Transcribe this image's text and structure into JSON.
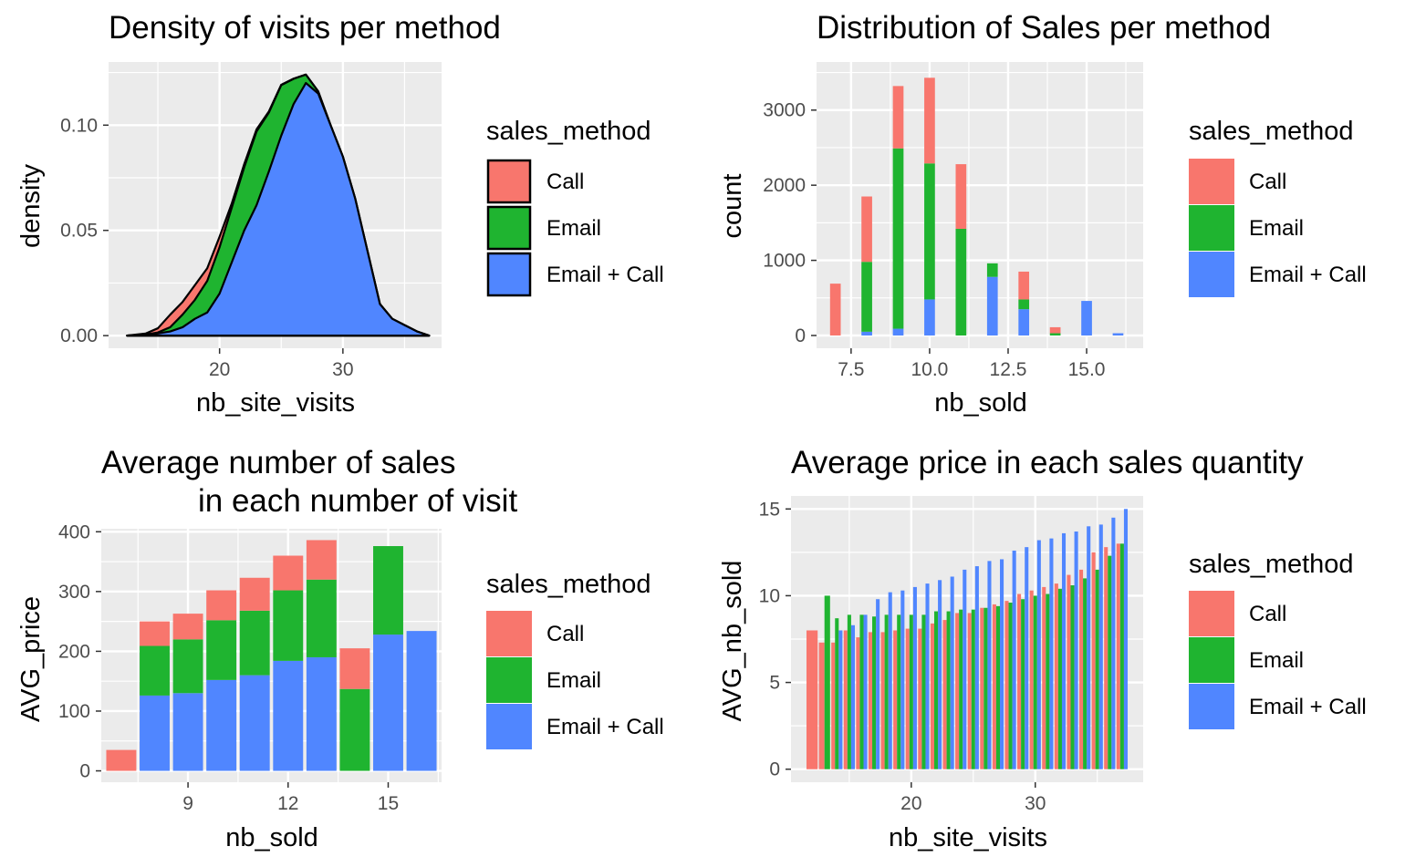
{
  "legend": {
    "title": "sales_method",
    "entries": [
      "Call",
      "Email",
      "Email + Call"
    ]
  },
  "colors": {
    "Call": "#F8766D",
    "Email": "#1FB430",
    "Email + Call": "#5086FF",
    "panel": "#EBEBEB"
  },
  "chart_data": [
    {
      "type": "area",
      "title": "Density of visits per method",
      "xlabel": "nb_site_visits",
      "ylabel": "density",
      "xlim": [
        11,
        38
      ],
      "ylim": [
        -0.006,
        0.13
      ],
      "xticks": [
        20,
        30
      ],
      "yticks": [
        0.0,
        0.05,
        0.1
      ],
      "ytick_labels": [
        "0.00",
        "0.05",
        "0.10"
      ],
      "stacked": true,
      "x": [
        12.5,
        14,
        15,
        16,
        17,
        18,
        19,
        20,
        21,
        22,
        23,
        24,
        25,
        26,
        27,
        28,
        29,
        30,
        31,
        32,
        33,
        34,
        35,
        36,
        37
      ],
      "series": [
        {
          "name": "Call",
          "values": [
            0.0,
            0.0005,
            0.002,
            0.006,
            0.006,
            0.007,
            0.006,
            0.005,
            0.002,
            0.0015,
            0.001,
            0.0005,
            0.0002,
            0.0001,
            0.0,
            0.0,
            0.0,
            0.0,
            0.0,
            0.0,
            0.0,
            0.0,
            0.0,
            0.0,
            0.0
          ]
        },
        {
          "name": "Email",
          "values": [
            0.0,
            0.0,
            0.0005,
            0.002,
            0.006,
            0.009,
            0.015,
            0.022,
            0.026,
            0.03,
            0.035,
            0.028,
            0.024,
            0.012,
            0.004,
            0.001,
            0.0,
            0.0,
            0.0,
            0.0,
            0.0,
            0.0,
            0.0,
            0.0,
            0.0
          ]
        },
        {
          "name": "Email + Call",
          "values": [
            0.0,
            0.0005,
            0.001,
            0.002,
            0.004,
            0.008,
            0.011,
            0.02,
            0.035,
            0.05,
            0.062,
            0.078,
            0.095,
            0.11,
            0.12,
            0.115,
            0.1,
            0.085,
            0.065,
            0.04,
            0.015,
            0.008,
            0.005,
            0.002,
            0.0
          ]
        }
      ]
    },
    {
      "type": "bar",
      "title": "Distribution of Sales per method",
      "xlabel": "nb_sold",
      "ylabel": "count",
      "xlim": [
        6.4,
        16.8
      ],
      "ylim": [
        -170,
        3640
      ],
      "xticks": [
        7.5,
        10.0,
        12.5,
        15.0
      ],
      "xtick_labels": [
        "7.5",
        "10.0",
        "12.5",
        "15.0"
      ],
      "yticks": [
        0,
        1000,
        2000,
        3000
      ],
      "stacked": true,
      "x": [
        7,
        8,
        9,
        10,
        11,
        12,
        13,
        14,
        15,
        16
      ],
      "series": [
        {
          "name": "Call",
          "values": [
            690,
            870,
            830,
            1140,
            860,
            0,
            370,
            80,
            0,
            0
          ]
        },
        {
          "name": "Email",
          "values": [
            0,
            930,
            2400,
            1810,
            1420,
            180,
            130,
            30,
            0,
            0
          ]
        },
        {
          "name": "Email + Call",
          "values": [
            0,
            50,
            90,
            480,
            0,
            780,
            350,
            0,
            460,
            30
          ]
        }
      ]
    },
    {
      "type": "bar",
      "title": "Average number of sales\n             in each number of visit",
      "xlabel": "nb_sold",
      "ylabel": "AVG_price",
      "xlim": [
        6.4,
        16.6
      ],
      "ylim": [
        -19,
        405
      ],
      "xticks": [
        9,
        12,
        15
      ],
      "yticks": [
        0,
        100,
        200,
        300,
        400
      ],
      "stacked": true,
      "x": [
        7,
        8,
        9,
        10,
        11,
        12,
        13,
        14,
        15,
        16
      ],
      "series": [
        {
          "name": "Call",
          "values": [
            35,
            41,
            43,
            50,
            55,
            58,
            66,
            68,
            0,
            0
          ]
        },
        {
          "name": "Email",
          "values": [
            0,
            83,
            90,
            100,
            108,
            118,
            130,
            137,
            148,
            0
          ]
        },
        {
          "name": "Email + Call",
          "values": [
            0,
            126,
            130,
            152,
            160,
            184,
            190,
            0,
            228,
            234
          ]
        }
      ]
    },
    {
      "type": "bar",
      "title": "Average price in each sales quantity",
      "xlabel": "nb_site_visits",
      "ylabel": "AVG_nb_sold",
      "xlim": [
        10.3,
        38.7
      ],
      "ylim": [
        -0.75,
        15.75
      ],
      "xticks": [
        20,
        30
      ],
      "yticks": [
        0,
        5,
        10,
        15
      ],
      "grouped": true,
      "x": [
        12,
        13,
        14,
        15,
        16,
        17,
        18,
        19,
        20,
        21,
        22,
        23,
        24,
        25,
        26,
        27,
        28,
        29,
        30,
        31,
        32,
        33,
        34,
        35,
        36,
        37
      ],
      "series": [
        {
          "name": "Call",
          "values": [
            8.0,
            7.3,
            7.3,
            8.0,
            7.6,
            7.9,
            7.9,
            8.0,
            8.1,
            8.1,
            8.4,
            8.6,
            9.0,
            9.0,
            9.3,
            9.5,
            9.7,
            10.1,
            10.3,
            10.5,
            10.7,
            11.2,
            11.5,
            12.5,
            12.8,
            13.0
          ]
        },
        {
          "name": "Email",
          "values": [
            null,
            10.0,
            8.7,
            8.9,
            8.9,
            8.8,
            8.9,
            8.9,
            8.9,
            8.9,
            9.1,
            9.1,
            9.2,
            9.2,
            9.3,
            9.4,
            9.6,
            9.8,
            10.0,
            10.1,
            10.4,
            10.6,
            11.0,
            11.5,
            12.3,
            13.0
          ]
        },
        {
          "name": "Email + Call",
          "values": [
            null,
            null,
            8.0,
            8.3,
            8.9,
            9.8,
            10.2,
            10.3,
            10.5,
            10.7,
            10.9,
            11.1,
            11.5,
            11.7,
            12.0,
            12.1,
            12.6,
            12.8,
            13.2,
            13.3,
            13.6,
            13.7,
            14.0,
            14.1,
            14.5,
            15.0
          ]
        }
      ]
    }
  ]
}
